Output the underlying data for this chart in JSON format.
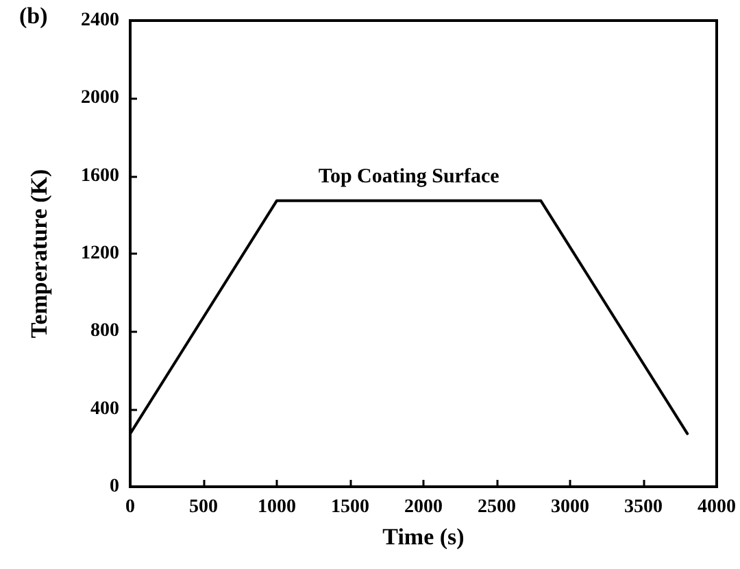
{
  "chart_data": {
    "type": "line",
    "xlabel": "Time (s)",
    "ylabel": "Temperature (K)",
    "x": [
      0,
      1000,
      2800,
      3800
    ],
    "series": [
      {
        "color": "#000000",
        "values": [
          273,
          1473,
          1473,
          273
        ]
      }
    ],
    "xlim": [
      0,
      4000
    ],
    "xticks": [
      0,
      500,
      1000,
      1500,
      2000,
      2500,
      3000,
      3500,
      4000
    ],
    "ylim": [
      0,
      2400
    ],
    "yticks": [
      0,
      400,
      800,
      1200,
      1600,
      2000,
      2400
    ],
    "annotations": [
      "(b)",
      {
        "text": "Top Coating Surface",
        "x": 1900,
        "y": 1473
      }
    ],
    "marker": "none",
    "line_style": "solid",
    "grid": false
  }
}
